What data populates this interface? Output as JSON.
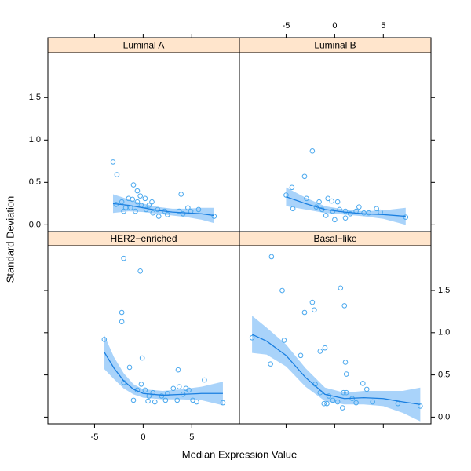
{
  "chart_data": {
    "type": "scatter",
    "xlabel": "Median Expression Value",
    "ylabel": "Standard Deviation",
    "xlim": [
      -9.8,
      9.9
    ],
    "ylim": [
      -0.08,
      2.03
    ],
    "xticks": [
      -5,
      0,
      5
    ],
    "yticks": [
      {
        "value": 0,
        "label": "0.0"
      },
      {
        "value": 0.5,
        "label": "0.5"
      },
      {
        "value": 1,
        "label": "1.0"
      },
      {
        "value": 1.5,
        "label": "1.5"
      }
    ],
    "point_color": "#4aa8ee",
    "line_color": "#1a7fe0",
    "band_color": "#a9d3fa",
    "strip_color": "#ffe5cc",
    "panels": [
      {
        "title": "Luminal A",
        "x": [
          -3.1,
          -2.7,
          -1.0,
          -2.8,
          -2.2,
          -1.8,
          -1.5,
          -0.6,
          -0.3,
          0.2,
          0.6,
          0.9,
          1.5,
          2.2,
          2.5,
          3.9,
          3.7,
          4.1,
          4.6,
          4.9,
          5.7,
          7.3,
          -2.0,
          -1.3,
          -0.8,
          -0.2,
          0.3,
          1.0,
          1.6,
          -0.6,
          -1.1
        ],
        "y": [
          0.74,
          0.59,
          0.47,
          0.24,
          0.27,
          0.2,
          0.31,
          0.4,
          0.34,
          0.31,
          0.23,
          0.27,
          0.18,
          0.16,
          0.12,
          0.36,
          0.16,
          0.13,
          0.2,
          0.16,
          0.18,
          0.1,
          0.16,
          0.2,
          0.16,
          0.23,
          0.18,
          0.14,
          0.1,
          0.27,
          0.3
        ],
        "fit": {
          "x": [
            -3.1,
            -1.5,
            0,
            1.5,
            3,
            4.5,
            6,
            7.3
          ],
          "y": [
            0.25,
            0.23,
            0.2,
            0.17,
            0.15,
            0.14,
            0.13,
            0.11
          ],
          "lower": [
            0.14,
            0.16,
            0.15,
            0.13,
            0.11,
            0.09,
            0.06,
            0.02
          ],
          "upper": [
            0.36,
            0.3,
            0.25,
            0.21,
            0.19,
            0.19,
            0.2,
            0.2
          ]
        }
      },
      {
        "title": "Luminal B",
        "x": [
          -2.3,
          -3.1,
          -4.4,
          -5.0,
          -4.3,
          -2.9,
          -1.6,
          -0.7,
          -0.3,
          0.3,
          -1.3,
          -0.9,
          -0.2,
          0.5,
          1.1,
          1.6,
          2.2,
          2.5,
          3.0,
          3.5,
          4.3,
          4.7,
          7.3,
          0,
          1.1,
          -1.9
        ],
        "y": [
          0.87,
          0.57,
          0.44,
          0.35,
          0.19,
          0.31,
          0.27,
          0.31,
          0.28,
          0.27,
          0.18,
          0.11,
          0.16,
          0.18,
          0.16,
          0.13,
          0.16,
          0.21,
          0.14,
          0.14,
          0.19,
          0.15,
          0.09,
          0.06,
          0.08,
          0.21
        ],
        "fit": {
          "x": [
            -5,
            -3,
            -1,
            1,
            3,
            5,
            7.3
          ],
          "y": [
            0.33,
            0.25,
            0.18,
            0.15,
            0.13,
            0.12,
            0.1
          ],
          "lower": [
            0.22,
            0.18,
            0.14,
            0.12,
            0.1,
            0.07,
            0.0
          ],
          "upper": [
            0.44,
            0.32,
            0.22,
            0.18,
            0.16,
            0.17,
            0.2
          ]
        }
      },
      {
        "title": "HER2−enriched",
        "x": [
          -4.0,
          -2.0,
          -0.3,
          -2.2,
          -2.2,
          -0.1,
          -1.4,
          -2.0,
          3.6,
          6.3,
          -1.0,
          -0.6,
          0.2,
          0.6,
          1.2,
          1.9,
          2.5,
          3.1,
          3.7,
          4.1,
          4.7,
          5.1,
          5.5,
          8.2,
          -0.2,
          0.5,
          2.3,
          4.4,
          1.0,
          3.5
        ],
        "y": [
          0.92,
          1.88,
          1.73,
          1.24,
          1.13,
          0.7,
          0.59,
          0.41,
          0.56,
          0.44,
          0.2,
          0.32,
          0.32,
          0.25,
          0.18,
          0.25,
          0.28,
          0.34,
          0.36,
          0.27,
          0.32,
          0.2,
          0.18,
          0.17,
          0.39,
          0.19,
          0.2,
          0.34,
          0.29,
          0.2
        ],
        "fit": {
          "x": [
            -4.0,
            -3,
            -2,
            -1,
            0,
            2,
            4,
            6,
            8.2
          ],
          "y": [
            0.77,
            0.58,
            0.43,
            0.33,
            0.28,
            0.26,
            0.27,
            0.28,
            0.28
          ],
          "lower": [
            0.57,
            0.45,
            0.34,
            0.27,
            0.23,
            0.21,
            0.21,
            0.2,
            0.14
          ],
          "upper": [
            0.97,
            0.71,
            0.52,
            0.39,
            0.33,
            0.31,
            0.33,
            0.36,
            0.42
          ]
        }
      },
      {
        "title": "Basal−like",
        "x": [
          -6.5,
          -5.4,
          -8.5,
          -5.2,
          -6.6,
          -3.5,
          -2.3,
          -2.1,
          -3.1,
          -1.5,
          -1.0,
          0.6,
          1.0,
          1.1,
          1.2,
          0.9,
          1.2,
          2.9,
          3.3,
          -2.0,
          -1.5,
          -1.1,
          -0.6,
          -0.2,
          0.3,
          0.8,
          1.8,
          2.2,
          3.9,
          6.5,
          8.8,
          -0.8
        ],
        "y": [
          1.9,
          1.5,
          0.94,
          0.91,
          0.63,
          0.73,
          1.36,
          1.27,
          1.24,
          0.78,
          0.82,
          1.53,
          1.32,
          0.65,
          0.51,
          0.29,
          0.29,
          0.4,
          0.33,
          0.39,
          0.29,
          0.16,
          0.25,
          0.2,
          0.18,
          0.11,
          0.22,
          0.17,
          0.18,
          0.16,
          0.13,
          0.16
        ],
        "fit": {
          "x": [
            -8.5,
            -7,
            -5,
            -3,
            -1,
            1,
            3,
            5,
            7,
            8.8
          ],
          "y": [
            0.98,
            0.9,
            0.73,
            0.47,
            0.27,
            0.22,
            0.23,
            0.22,
            0.18,
            0.15
          ],
          "lower": [
            0.76,
            0.74,
            0.6,
            0.36,
            0.19,
            0.15,
            0.15,
            0.13,
            0.05,
            -0.05
          ],
          "upper": [
            1.2,
            1.06,
            0.86,
            0.58,
            0.35,
            0.29,
            0.31,
            0.31,
            0.31,
            0.35
          ]
        }
      }
    ]
  }
}
